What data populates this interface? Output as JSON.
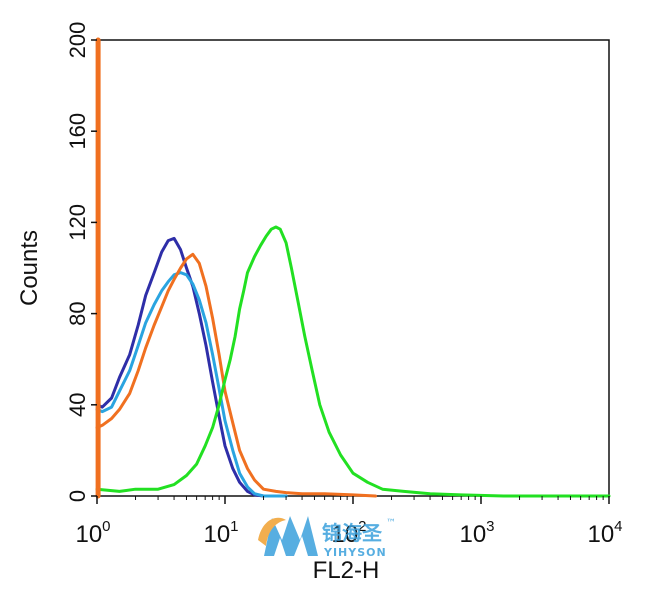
{
  "chart_data": {
    "type": "line",
    "title": "",
    "xlabel": "FL2-H",
    "ylabel": "Counts",
    "x_scale": "log",
    "xlim": [
      1,
      10000
    ],
    "ylim": [
      0,
      200
    ],
    "x_ticks": [
      {
        "base": "10",
        "exp": "0",
        "value": 1
      },
      {
        "base": "10",
        "exp": "1",
        "value": 10
      },
      {
        "base": "10",
        "exp": "2",
        "value": 100
      },
      {
        "base": "10",
        "exp": "3",
        "value": 1000
      },
      {
        "base": "10",
        "exp": "4",
        "value": 10000
      }
    ],
    "y_ticks": [
      "0",
      "40",
      "80",
      "120",
      "160",
      "200"
    ],
    "grid": false,
    "series": [
      {
        "color": "#2e2ea8",
        "x": [
          1.0,
          1.1,
          1.3,
          1.5,
          1.8,
          2.1,
          2.4,
          2.8,
          3.2,
          3.6,
          4.0,
          4.5,
          5.0,
          5.6,
          6.3,
          7.1,
          8.0,
          9.0,
          10.0,
          11.5,
          13.0,
          15.0,
          17.0,
          20.0,
          25.0,
          30.0
        ],
        "y": [
          40,
          39,
          43,
          52,
          62,
          75,
          88,
          98,
          107,
          112,
          113,
          108,
          100,
          92,
          80,
          66,
          50,
          35,
          22,
          12,
          6,
          2,
          0.5,
          0,
          0,
          0
        ]
      },
      {
        "color": "#2aa4e0",
        "x": [
          1.0,
          1.1,
          1.3,
          1.5,
          1.8,
          2.1,
          2.4,
          2.8,
          3.2,
          3.6,
          4.0,
          4.5,
          5.0,
          5.6,
          6.3,
          7.1,
          8.0,
          9.0,
          10.0,
          11.5,
          13.0,
          15.0,
          17.0,
          20.0,
          25.0,
          30.0
        ],
        "y": [
          38,
          37,
          39,
          46,
          55,
          66,
          76,
          84,
          90,
          94,
          97,
          98,
          97,
          93,
          86,
          76,
          62,
          47,
          33,
          20,
          10,
          4,
          1,
          0,
          0,
          0
        ]
      },
      {
        "color": "#f07020",
        "x": [
          1.0,
          1.1,
          1.3,
          1.5,
          1.8,
          2.1,
          2.4,
          2.8,
          3.2,
          3.6,
          4.0,
          4.5,
          5.0,
          5.6,
          6.3,
          7.1,
          8.0,
          9.0,
          10.0,
          11.5,
          13.0,
          15.0,
          17.0,
          20.0,
          25.0,
          30.0,
          40.0,
          60.0,
          100.0,
          150.0
        ],
        "y": [
          30,
          31,
          34,
          38,
          45,
          55,
          65,
          75,
          83,
          90,
          95,
          100,
          104,
          106,
          102,
          92,
          78,
          62,
          46,
          32,
          20,
          12,
          7,
          3,
          2,
          1.5,
          1,
          1,
          0.5,
          0
        ]
      },
      {
        "color": "#22e022",
        "x": [
          1.0,
          1.5,
          2.0,
          3.0,
          4.0,
          5.0,
          6.0,
          7.0,
          8.0,
          9.0,
          10.0,
          11.0,
          12.0,
          13.0,
          14.0,
          15.0,
          17.0,
          19.0,
          21.0,
          23.0,
          25.0,
          27.0,
          30.0,
          33.0,
          37.0,
          42.0,
          48.0,
          55.0,
          65.0,
          80.0,
          100.0,
          130.0,
          170.0,
          250.0,
          400.0,
          700.0,
          1500.0,
          4000.0,
          10000.0
        ],
        "y": [
          3,
          2,
          3,
          3,
          5,
          9,
          14,
          22,
          30,
          40,
          51,
          60,
          70,
          82,
          90,
          98,
          105,
          110,
          114,
          117,
          118,
          117,
          111,
          100,
          86,
          70,
          55,
          40,
          28,
          18,
          10,
          6,
          3,
          2,
          1,
          0.5,
          0,
          0,
          0
        ]
      },
      {
        "color": "#f07020",
        "x": [
          1.02,
          1.02
        ],
        "y": [
          0,
          200
        ]
      }
    ]
  },
  "watermark": {
    "brand_cn": "锦海圣",
    "brand_en": "YIHYSON",
    "trademark": "™"
  }
}
